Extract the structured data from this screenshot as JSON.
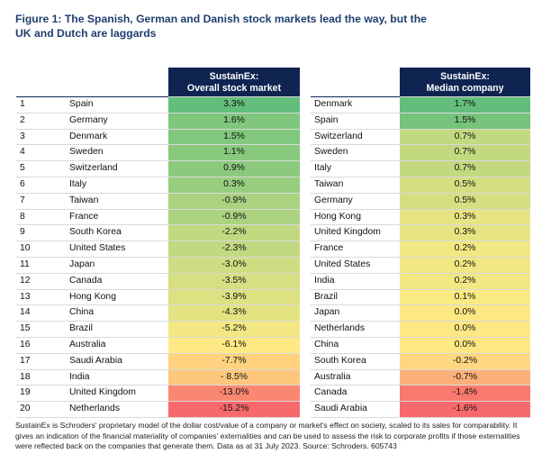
{
  "title": "Figure 1: The Spanish, German and Danish stock markets lead the way, but the UK and Dutch are laggards",
  "footnote": "SustainEx is Schroders' proprietary model of the dollar cost/value of a company or market's effect on society, scaled to its sales for comparability. It gives an indication of the financial materiality of companies' externalities and can be used to assess the risk to corporate profits if those externalities were reflected back on the companies that generate them. Data as at 31 July 2023. Source: Schroders. 605743",
  "colors": {
    "header": "#0f2451",
    "title": "#1f3f6e",
    "best": "#63be7b",
    "mid": "#ffeb84",
    "worst": "#f8696b"
  },
  "chart_data": [
    {
      "type": "table",
      "header": [
        "SustainEx:",
        "Overall stock market"
      ],
      "ranks": [
        "1",
        "2",
        "3",
        "4",
        "5",
        "6",
        "7",
        "8",
        "9",
        "10",
        "11",
        "12",
        "13",
        "14",
        "15",
        "16",
        "17",
        "18",
        "19",
        "20"
      ],
      "countries": [
        "Spain",
        "Germany",
        "Denmark",
        "Sweden",
        "Switzerland",
        "Italy",
        "Taiwan",
        "France",
        "South Korea",
        "United States",
        "Japan",
        "Canada",
        "Hong Kong",
        "China",
        "Brazil",
        "Australia",
        "Saudi Arabia",
        "India",
        "United Kingdom",
        "Netherlands"
      ],
      "labels": [
        "3.3%",
        "1.6%",
        "1.5%",
        "1.1%",
        "0.9%",
        "0.3%",
        "-0.9%",
        "-0.9%",
        "-2.2%",
        "-2.3%",
        "-3.0%",
        "-3.5%",
        "-3.9%",
        "-4.3%",
        "-5.2%",
        "-6.1%",
        "-7.7%",
        "- 8.5%",
        "-13.0%",
        "-15.2%"
      ],
      "values": [
        3.3,
        1.6,
        1.5,
        1.1,
        0.9,
        0.3,
        -0.9,
        -0.9,
        -2.2,
        -2.3,
        -3.0,
        -3.5,
        -3.9,
        -4.3,
        -5.2,
        -6.1,
        -7.7,
        -8.5,
        -13.0,
        -15.2
      ]
    },
    {
      "type": "table",
      "header": [
        "SustainEx:",
        "Median company"
      ],
      "countries": [
        "Denmark",
        "Spain",
        "Switzerland",
        "Sweden",
        "Italy",
        "Taiwan",
        "Germany",
        "Hong Kong",
        "United Kingdom",
        "France",
        "United States",
        "India",
        "Brazil",
        "Japan",
        "Netherlands",
        "China",
        "South Korea",
        "Australia",
        "Canada",
        "Saudi Arabia"
      ],
      "labels": [
        "1.7%",
        "1.5%",
        "0.7%",
        "0.7%",
        "0.7%",
        "0.5%",
        "0.5%",
        "0.3%",
        "0.3%",
        "0.2%",
        "0.2%",
        "0.2%",
        "0.1%",
        "0.0%",
        "0.0%",
        "0.0%",
        "-0.2%",
        "-0.7%",
        "-1.4%",
        "-1.6%"
      ],
      "values": [
        1.7,
        1.5,
        0.7,
        0.7,
        0.7,
        0.5,
        0.5,
        0.3,
        0.3,
        0.2,
        0.2,
        0.2,
        0.1,
        0.0,
        0.0,
        0.0,
        -0.2,
        -0.7,
        -1.4,
        -1.6
      ]
    }
  ]
}
